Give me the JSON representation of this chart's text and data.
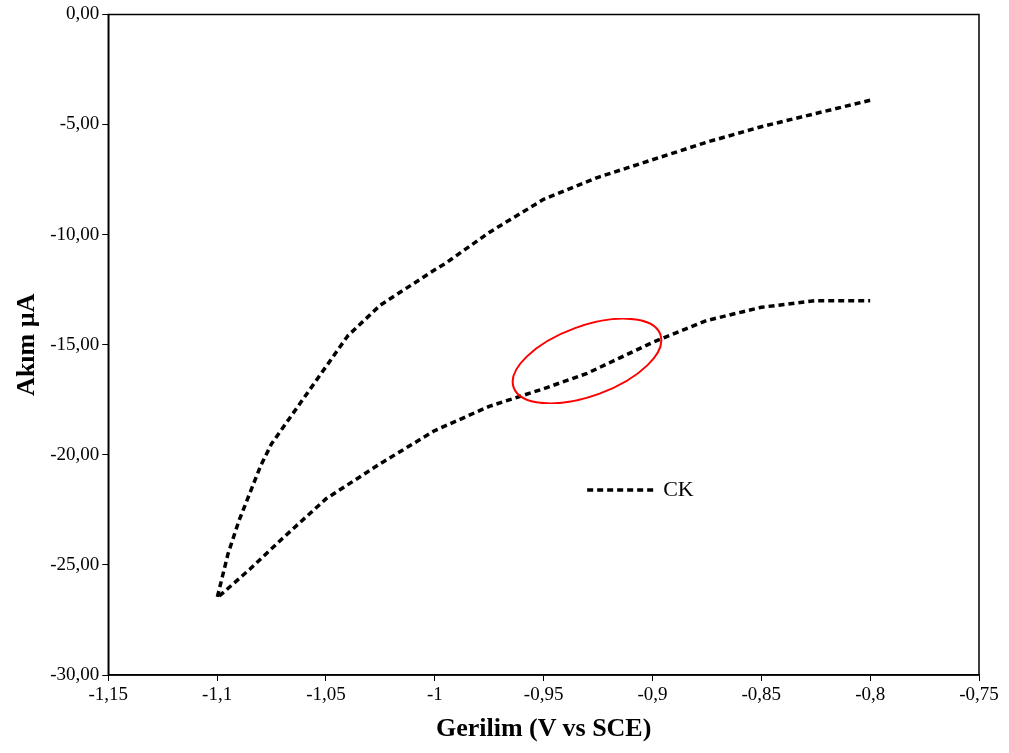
{
  "chart_data": {
    "type": "line",
    "xlabel": "Gerilim (V vs SCE)",
    "ylabel": "Akım µA",
    "xlim": [
      -1.15,
      -0.75
    ],
    "ylim": [
      -30,
      0
    ],
    "xticks": [
      {
        "value": -1.15,
        "label": "-1,15"
      },
      {
        "value": -1.1,
        "label": "-1,1"
      },
      {
        "value": -1.05,
        "label": "-1,05"
      },
      {
        "value": -1,
        "label": "-1"
      },
      {
        "value": -0.95,
        "label": "-0,95"
      },
      {
        "value": -0.9,
        "label": "-0,9"
      },
      {
        "value": -0.85,
        "label": "-0,85"
      },
      {
        "value": -0.8,
        "label": "-0,8"
      },
      {
        "value": -0.75,
        "label": "-0,75"
      }
    ],
    "yticks": [
      {
        "value": -30,
        "label": "-30,00"
      },
      {
        "value": -25,
        "label": "-25,00"
      },
      {
        "value": -20,
        "label": "-20,00"
      },
      {
        "value": -15,
        "label": "-15,00"
      },
      {
        "value": -10,
        "label": "-10,00"
      },
      {
        "value": -5,
        "label": "-5,00"
      },
      {
        "value": 0,
        "label": "0,00"
      }
    ],
    "series": [
      {
        "name": "CK",
        "color": "#000000",
        "x": [
          -0.8,
          -0.825,
          -0.85,
          -0.875,
          -0.9,
          -0.925,
          -0.95,
          -0.975,
          -0.995,
          -1.0,
          -1.025,
          -1.04,
          -1.05,
          -1.06,
          -1.075,
          -1.08,
          -1.09,
          -1.095,
          -1.1,
          -1.085,
          -1.07,
          -1.05,
          -1.025,
          -1.0,
          -0.975,
          -0.95,
          -0.93,
          -0.915,
          -0.9,
          -0.875,
          -0.85,
          -0.825,
          -0.8
        ],
        "values": [
          -3.9,
          -4.5,
          -5.1,
          -5.8,
          -6.6,
          -7.4,
          -8.4,
          -9.9,
          -11.3,
          -11.6,
          -13.2,
          -14.6,
          -16.0,
          -17.4,
          -19.5,
          -20.5,
          -23.0,
          -24.5,
          -26.5,
          -25.2,
          -23.8,
          -22.0,
          -20.4,
          -18.9,
          -17.8,
          -17.0,
          -16.3,
          -15.6,
          -14.9,
          -13.9,
          -13.3,
          -13.0,
          -13.0
        ]
      }
    ],
    "legend": "center",
    "line_style": "dashed",
    "marker": "none",
    "grid": false
  }
}
